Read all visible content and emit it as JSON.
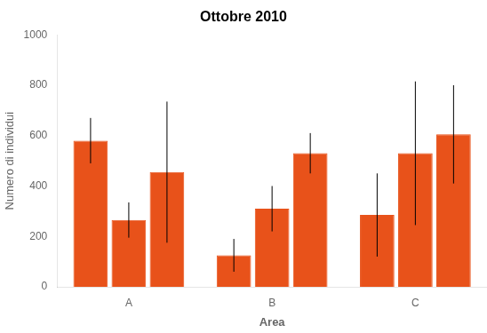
{
  "chart_data": {
    "type": "bar",
    "title": "Ottobre 2010",
    "x_label": "Area",
    "y_label": "Numero di individui",
    "categories": [
      "A",
      "B",
      "C"
    ],
    "series": [
      {
        "values": [
          580,
          125,
          285
        ],
        "errors": [
          90,
          65,
          165
        ]
      },
      {
        "values": [
          265,
          310,
          530
        ],
        "errors": [
          70,
          90,
          285
        ]
      },
      {
        "values": [
          455,
          530,
          605
        ],
        "errors": [
          280,
          80,
          195
        ]
      }
    ],
    "color": "#E8521A",
    "ylim": [
      0,
      1000
    ],
    "yticks": [
      0,
      200,
      400,
      600,
      800,
      1000
    ],
    "grid": false
  }
}
